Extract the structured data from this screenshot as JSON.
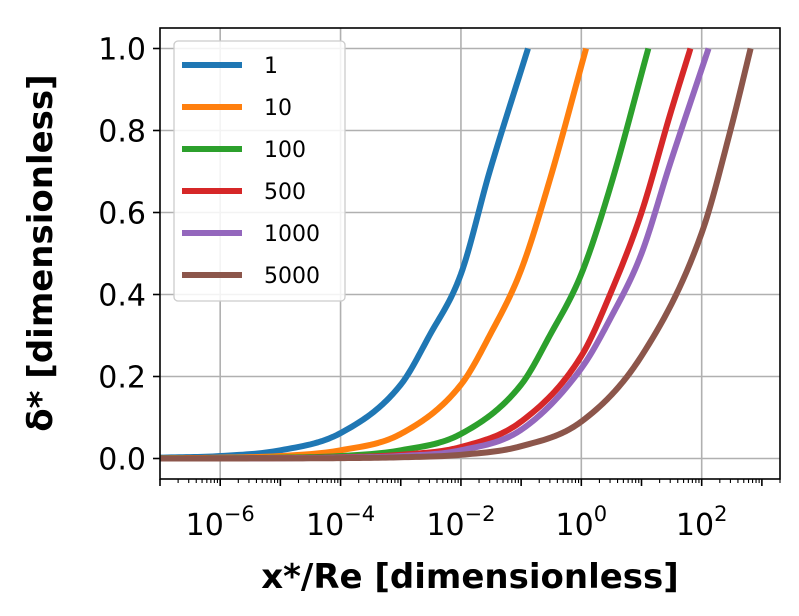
{
  "chart_data": {
    "type": "line",
    "xlabel": "x*/Re [dimensionless]",
    "ylabel": "δ* [dimensionless]",
    "x_scale": "log",
    "xlim": [
      1e-07,
      2000
    ],
    "ylim": [
      -0.05,
      1.05
    ],
    "grid": true,
    "legend_position": "top-left",
    "x_ticks": [
      {
        "value": 1e-06,
        "base": "10",
        "exp": "−6"
      },
      {
        "value": 0.0001,
        "base": "10",
        "exp": "−4"
      },
      {
        "value": 0.01,
        "base": "10",
        "exp": "−2"
      },
      {
        "value": 1,
        "base": "10",
        "exp": "0"
      },
      {
        "value": 100,
        "base": "10",
        "exp": "2"
      }
    ],
    "y_ticks": [
      {
        "value": 0.0,
        "label": "0.0"
      },
      {
        "value": 0.2,
        "label": "0.2"
      },
      {
        "value": 0.4,
        "label": "0.4"
      },
      {
        "value": 0.6,
        "label": "0.6"
      },
      {
        "value": 0.8,
        "label": "0.8"
      },
      {
        "value": 1.0,
        "label": "1.0"
      }
    ],
    "series": [
      {
        "name": "1",
        "color": "#1f77b4",
        "x": [
          1e-07,
          1e-06,
          1e-05,
          0.0001,
          0.001,
          0.003,
          0.01,
          0.03,
          0.13
        ],
        "y": [
          0.002,
          0.006,
          0.02,
          0.062,
          0.18,
          0.3,
          0.45,
          0.7,
          1.0
        ]
      },
      {
        "name": "10",
        "color": "#ff7f0e",
        "x": [
          1e-07,
          1e-06,
          1e-05,
          0.0001,
          0.001,
          0.01,
          0.03,
          0.1,
          0.3,
          1.2
        ],
        "y": [
          0.0006,
          0.002,
          0.006,
          0.02,
          0.06,
          0.18,
          0.3,
          0.46,
          0.68,
          1.0
        ]
      },
      {
        "name": "100",
        "color": "#2ca02c",
        "x": [
          1e-07,
          1e-06,
          1e-05,
          0.0001,
          0.001,
          0.01,
          0.1,
          0.3,
          1,
          3,
          13
        ],
        "y": [
          0.0002,
          0.0006,
          0.002,
          0.006,
          0.02,
          0.06,
          0.18,
          0.3,
          0.45,
          0.66,
          1.0
        ]
      },
      {
        "name": "500",
        "color": "#d62728",
        "x": [
          1e-07,
          1e-06,
          1e-05,
          0.0001,
          0.001,
          0.01,
          0.1,
          1,
          3,
          10,
          30,
          65
        ],
        "y": [
          0.0001,
          0.0003,
          0.0009,
          0.003,
          0.009,
          0.028,
          0.09,
          0.25,
          0.4,
          0.6,
          0.84,
          1.0
        ]
      },
      {
        "name": "1000",
        "color": "#9467bd",
        "x": [
          1e-07,
          1e-06,
          1e-05,
          0.0001,
          0.001,
          0.01,
          0.1,
          1,
          3,
          10,
          30,
          130
        ],
        "y": [
          6e-05,
          0.0002,
          0.0006,
          0.002,
          0.006,
          0.02,
          0.07,
          0.22,
          0.34,
          0.5,
          0.72,
          1.0
        ]
      },
      {
        "name": "5000",
        "color": "#8c564b",
        "x": [
          1e-07,
          1e-06,
          1e-05,
          0.0001,
          0.001,
          0.01,
          0.1,
          1,
          10,
          100,
          300,
          650
        ],
        "y": [
          3e-05,
          0.0001,
          0.0003,
          0.0009,
          0.003,
          0.009,
          0.03,
          0.09,
          0.25,
          0.55,
          0.8,
          1.0
        ]
      }
    ]
  }
}
